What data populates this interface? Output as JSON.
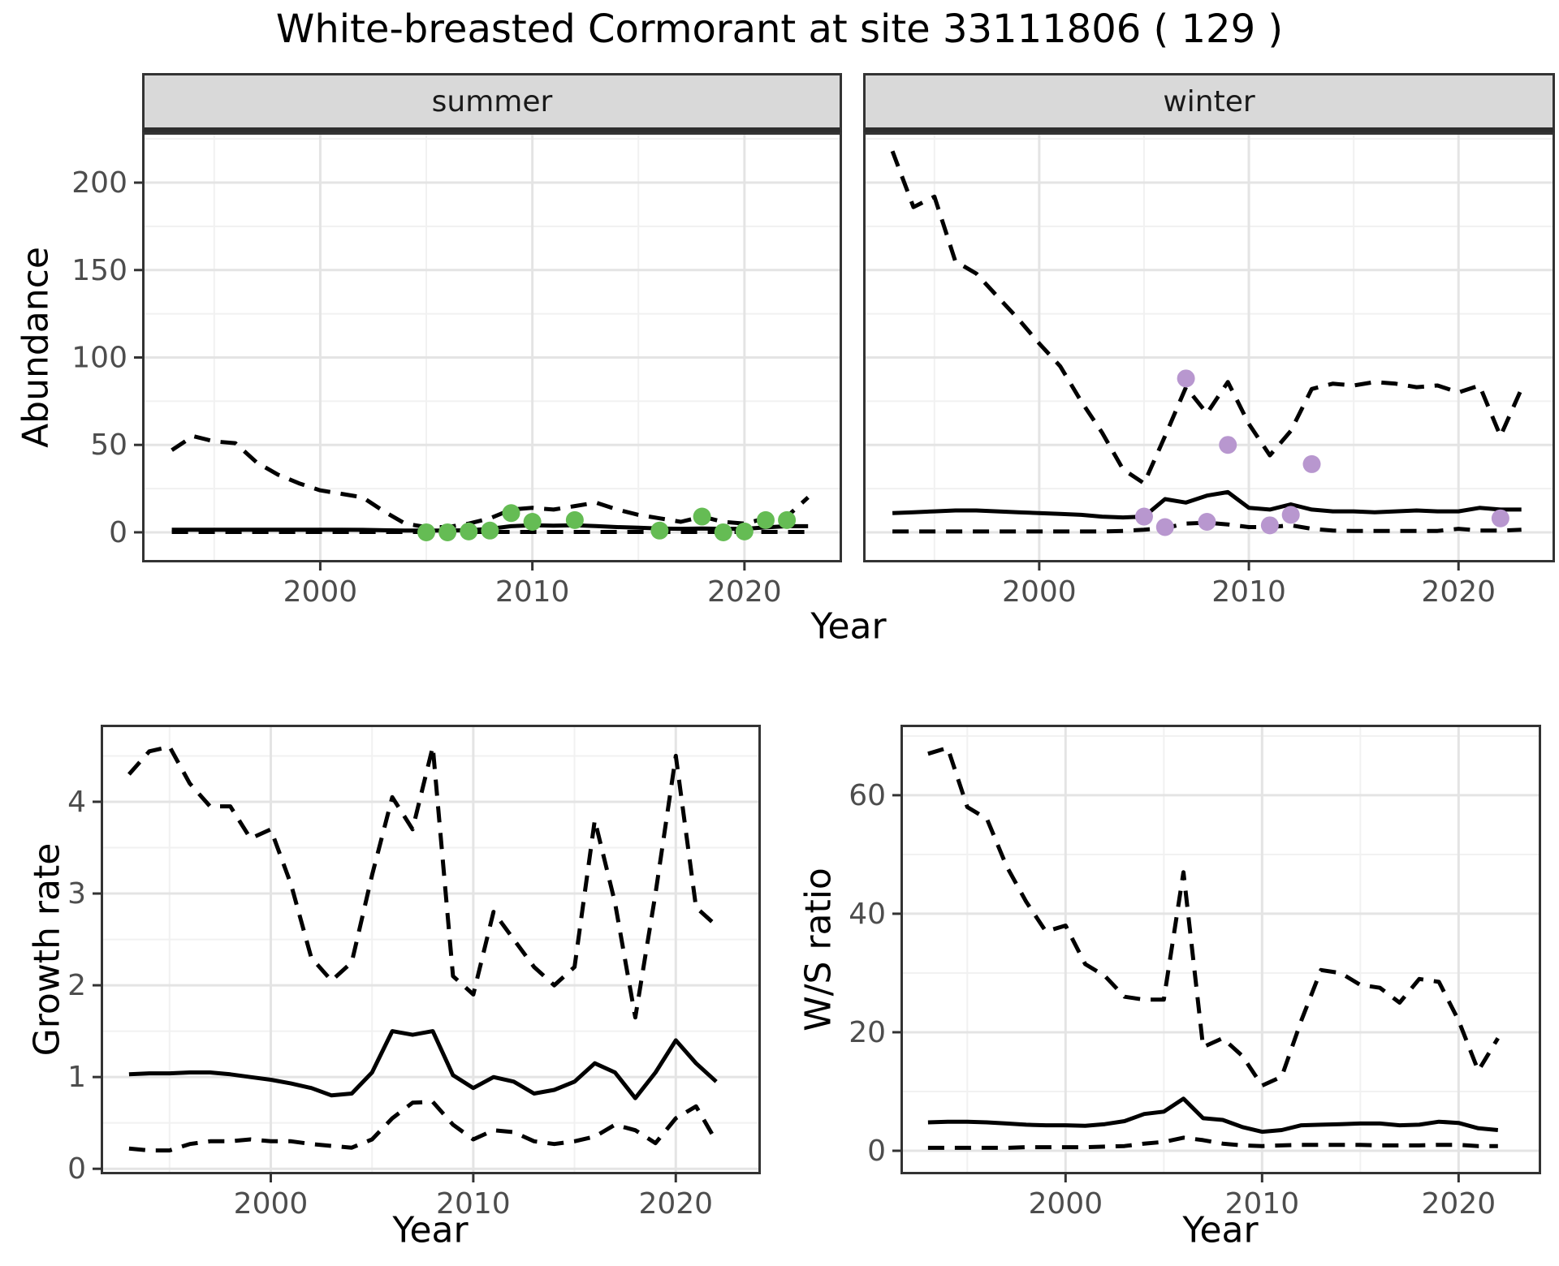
{
  "title": "White-breasted Cormorant at site 33111806 ( 129 )",
  "colors": {
    "line": "#000000",
    "grid_major": "#E4E4E4",
    "grid_minor": "#F1F1F1",
    "panel_border": "#333333",
    "tick_text": "#4D4D4D",
    "strip_bg": "#D9D9D9",
    "summer_points": "#65BC54",
    "winter_points": "#B897CF"
  },
  "chart_data": [
    {
      "id": "abundance_summer",
      "type": "line",
      "facet": "summer",
      "xlabel": "Year",
      "ylabel": "Abundance",
      "xlim": [
        1991.6,
        2024.6
      ],
      "ylim": [
        -17.2,
        228.8
      ],
      "xticks": [
        2000,
        2010,
        2020
      ],
      "xminor": [
        1995,
        2005,
        2015
      ],
      "yticks": [
        0,
        50,
        100,
        150,
        200
      ],
      "yminor": [
        25,
        75,
        125,
        175,
        225
      ],
      "grid": true,
      "legend": "none",
      "years": [
        1993,
        1994,
        1995,
        1996,
        1997,
        1998,
        1999,
        2000,
        2001,
        2002,
        2003,
        2004,
        2005,
        2006,
        2007,
        2008,
        2009,
        2010,
        2011,
        2012,
        2013,
        2014,
        2015,
        2016,
        2017,
        2018,
        2019,
        2020,
        2021,
        2022,
        2023
      ],
      "series": [
        {
          "name": "ci_upper_97.5",
          "style": "dashed",
          "values": [
            47,
            55,
            52,
            51,
            40,
            33,
            28,
            24,
            22,
            20,
            12,
            5,
            3,
            3,
            5,
            8,
            13,
            14,
            13,
            15,
            17,
            13,
            10,
            8,
            6,
            9,
            6,
            5,
            8,
            9,
            20
          ]
        },
        {
          "name": "median",
          "style": "solid",
          "values": [
            1.5,
            1.5,
            1.5,
            1.5,
            1.5,
            1.5,
            1.5,
            1.5,
            1.5,
            1.4,
            1.2,
            1,
            1,
            1,
            1.2,
            2,
            3.5,
            4,
            3.8,
            4,
            3.6,
            3,
            2.6,
            2.2,
            2,
            2.2,
            2,
            2,
            2.8,
            3.5,
            3.5
          ]
        },
        {
          "name": "ci_lower_2.5",
          "style": "dashed",
          "values": [
            0.2,
            0.2,
            0.2,
            0.2,
            0.2,
            0.2,
            0.2,
            0.2,
            0.2,
            0.2,
            0.2,
            0.2,
            0.2,
            0.2,
            0.2,
            0.2,
            0.2,
            0.2,
            0.2,
            0.2,
            0.2,
            0.2,
            0.2,
            0.2,
            0.2,
            0.2,
            0.2,
            0.2,
            0.2,
            0.2,
            0.2
          ]
        }
      ],
      "points": {
        "name": "observed_summer_counts",
        "color": "#65BC54",
        "x": [
          2005,
          2006,
          2007,
          2008,
          2009,
          2010,
          2012,
          2016,
          2018,
          2019,
          2020,
          2021,
          2022
        ],
        "y": [
          0,
          0,
          0.5,
          1,
          11,
          6,
          7,
          1,
          9,
          0,
          0.5,
          7,
          7
        ]
      }
    },
    {
      "id": "abundance_winter",
      "type": "line",
      "facet": "winter",
      "xlabel": "Year",
      "ylabel": "Abundance",
      "xlim": [
        1991.6,
        2024.6
      ],
      "ylim": [
        -17.2,
        228.8
      ],
      "xticks": [
        2000,
        2010,
        2020
      ],
      "xminor": [
        1995,
        2005,
        2015
      ],
      "yticks": [
        0,
        50,
        100,
        150,
        200
      ],
      "yminor": [
        25,
        75,
        125,
        175,
        225
      ],
      "grid": true,
      "legend": "none",
      "years": [
        1993,
        1994,
        1995,
        1996,
        1997,
        1998,
        1999,
        2000,
        2001,
        2002,
        2003,
        2004,
        2005,
        2006,
        2007,
        2008,
        2009,
        2010,
        2011,
        2012,
        2013,
        2014,
        2015,
        2016,
        2017,
        2018,
        2019,
        2020,
        2021,
        2022,
        2023
      ],
      "series": [
        {
          "name": "ci_upper_97.5",
          "style": "dashed",
          "values": [
            218,
            186,
            192,
            155,
            148,
            135,
            122,
            108,
            95,
            75,
            57,
            36,
            28,
            55,
            83,
            68,
            86,
            62,
            44,
            58,
            82,
            85,
            84,
            86,
            85,
            83,
            84,
            80,
            84,
            55,
            82
          ]
        },
        {
          "name": "median",
          "style": "solid",
          "values": [
            11,
            11.5,
            12,
            12.5,
            12.5,
            12,
            11.5,
            11,
            10.5,
            10,
            9,
            8.5,
            9,
            19,
            17,
            21,
            23,
            14,
            13,
            16,
            13,
            12,
            12,
            11.5,
            12,
            12.5,
            12,
            12,
            14,
            13,
            13
          ]
        },
        {
          "name": "ci_lower_2.5",
          "style": "dashed",
          "values": [
            0.5,
            0.5,
            0.5,
            0.5,
            0.5,
            0.5,
            0.5,
            0.5,
            0.5,
            0.5,
            0.5,
            0.8,
            1.5,
            2.5,
            5,
            5.5,
            4.5,
            3,
            3,
            4,
            2,
            1,
            0.8,
            0.8,
            0.8,
            0.8,
            0.8,
            2,
            1,
            1,
            1.5
          ]
        }
      ],
      "points": {
        "name": "observed_winter_counts",
        "color": "#B897CF",
        "x": [
          2005,
          2006,
          2007,
          2008,
          2009,
          2011,
          2012,
          2013,
          2022
        ],
        "y": [
          9,
          3,
          88,
          6,
          50,
          4,
          10,
          39,
          8
        ]
      }
    },
    {
      "id": "growth_rate",
      "type": "line",
      "facet": "",
      "xlabel": "Year",
      "ylabel": "Growth rate",
      "xlim": [
        1991.6,
        2024.2
      ],
      "ylim": [
        -0.06,
        4.84
      ],
      "xticks": [
        2000,
        2010,
        2020
      ],
      "xminor": [
        1995,
        2005,
        2015
      ],
      "yticks": [
        0,
        1,
        2,
        3,
        4
      ],
      "yminor": [
        0.5,
        1.5,
        2.5,
        3.5,
        4.5
      ],
      "grid": true,
      "legend": "none",
      "years": [
        1993,
        1994,
        1995,
        1996,
        1997,
        1998,
        1999,
        2000,
        2001,
        2002,
        2003,
        2004,
        2005,
        2006,
        2007,
        2008,
        2009,
        2010,
        2011,
        2012,
        2013,
        2014,
        2015,
        2016,
        2017,
        2018,
        2019,
        2020,
        2021,
        2022
      ],
      "series": [
        {
          "name": "ci_upper_97.5",
          "style": "dashed",
          "values": [
            4.3,
            4.55,
            4.6,
            4.2,
            3.95,
            3.95,
            3.6,
            3.7,
            3.1,
            2.3,
            2.05,
            2.25,
            3.2,
            4.05,
            3.7,
            4.6,
            2.1,
            1.9,
            2.8,
            2.5,
            2.2,
            2.0,
            2.2,
            3.8,
            2.9,
            1.65,
            3.0,
            4.5,
            2.85,
            2.65
          ]
        },
        {
          "name": "median",
          "style": "solid",
          "values": [
            1.03,
            1.04,
            1.04,
            1.05,
            1.05,
            1.03,
            1.0,
            0.97,
            0.93,
            0.88,
            0.8,
            0.82,
            1.05,
            1.5,
            1.46,
            1.5,
            1.02,
            0.88,
            1.0,
            0.95,
            0.82,
            0.86,
            0.95,
            1.15,
            1.05,
            0.77,
            1.05,
            1.4,
            1.15,
            0.95
          ]
        },
        {
          "name": "ci_lower_2.5",
          "style": "dashed",
          "values": [
            0.22,
            0.2,
            0.2,
            0.27,
            0.3,
            0.3,
            0.32,
            0.3,
            0.3,
            0.27,
            0.25,
            0.23,
            0.32,
            0.55,
            0.72,
            0.73,
            0.48,
            0.32,
            0.42,
            0.4,
            0.3,
            0.27,
            0.3,
            0.35,
            0.48,
            0.42,
            0.28,
            0.55,
            0.68,
            0.3
          ]
        }
      ],
      "points": null
    },
    {
      "id": "ws_ratio",
      "type": "line",
      "facet": "",
      "xlabel": "Year",
      "ylabel": "W/S ratio",
      "xlim": [
        1991.6,
        2024.2
      ],
      "ylim": [
        -3.97,
        71.9
      ],
      "xticks": [
        2000,
        2010,
        2020
      ],
      "xminor": [
        1995,
        2005,
        2015
      ],
      "yticks": [
        0,
        20,
        40,
        60
      ],
      "yminor": [
        10,
        30,
        50,
        70
      ],
      "grid": true,
      "legend": "none",
      "years": [
        1993,
        1994,
        1995,
        1996,
        1997,
        1998,
        1999,
        2000,
        2001,
        2002,
        2003,
        2004,
        2005,
        2006,
        2007,
        2008,
        2009,
        2010,
        2011,
        2012,
        2013,
        2014,
        2015,
        2016,
        2017,
        2018,
        2019,
        2020,
        2021,
        2022
      ],
      "series": [
        {
          "name": "ci_upper_97.5",
          "style": "dashed",
          "values": [
            67,
            68,
            58,
            56,
            48,
            42,
            37,
            38,
            31.5,
            29.5,
            26,
            25.5,
            25.5,
            47,
            17.5,
            19,
            16,
            11,
            12.5,
            22,
            30.5,
            30,
            28,
            27.5,
            25,
            29,
            28.5,
            22,
            13.5,
            19
          ]
        },
        {
          "name": "median",
          "style": "solid",
          "values": [
            4.8,
            4.9,
            4.9,
            4.8,
            4.6,
            4.4,
            4.3,
            4.3,
            4.2,
            4.5,
            5.0,
            6.2,
            6.6,
            8.8,
            5.5,
            5.2,
            4.0,
            3.2,
            3.5,
            4.3,
            4.4,
            4.5,
            4.6,
            4.6,
            4.3,
            4.4,
            4.9,
            4.7,
            3.8,
            3.5
          ]
        },
        {
          "name": "ci_lower_2.5",
          "style": "dashed",
          "values": [
            0.5,
            0.5,
            0.5,
            0.5,
            0.5,
            0.6,
            0.6,
            0.6,
            0.6,
            0.7,
            0.8,
            1.2,
            1.5,
            2.2,
            1.8,
            1.2,
            0.9,
            0.8,
            0.9,
            1.0,
            1.0,
            1.0,
            1.0,
            0.9,
            0.9,
            0.9,
            1.0,
            1.0,
            0.8,
            0.8
          ]
        }
      ],
      "points": null
    }
  ]
}
